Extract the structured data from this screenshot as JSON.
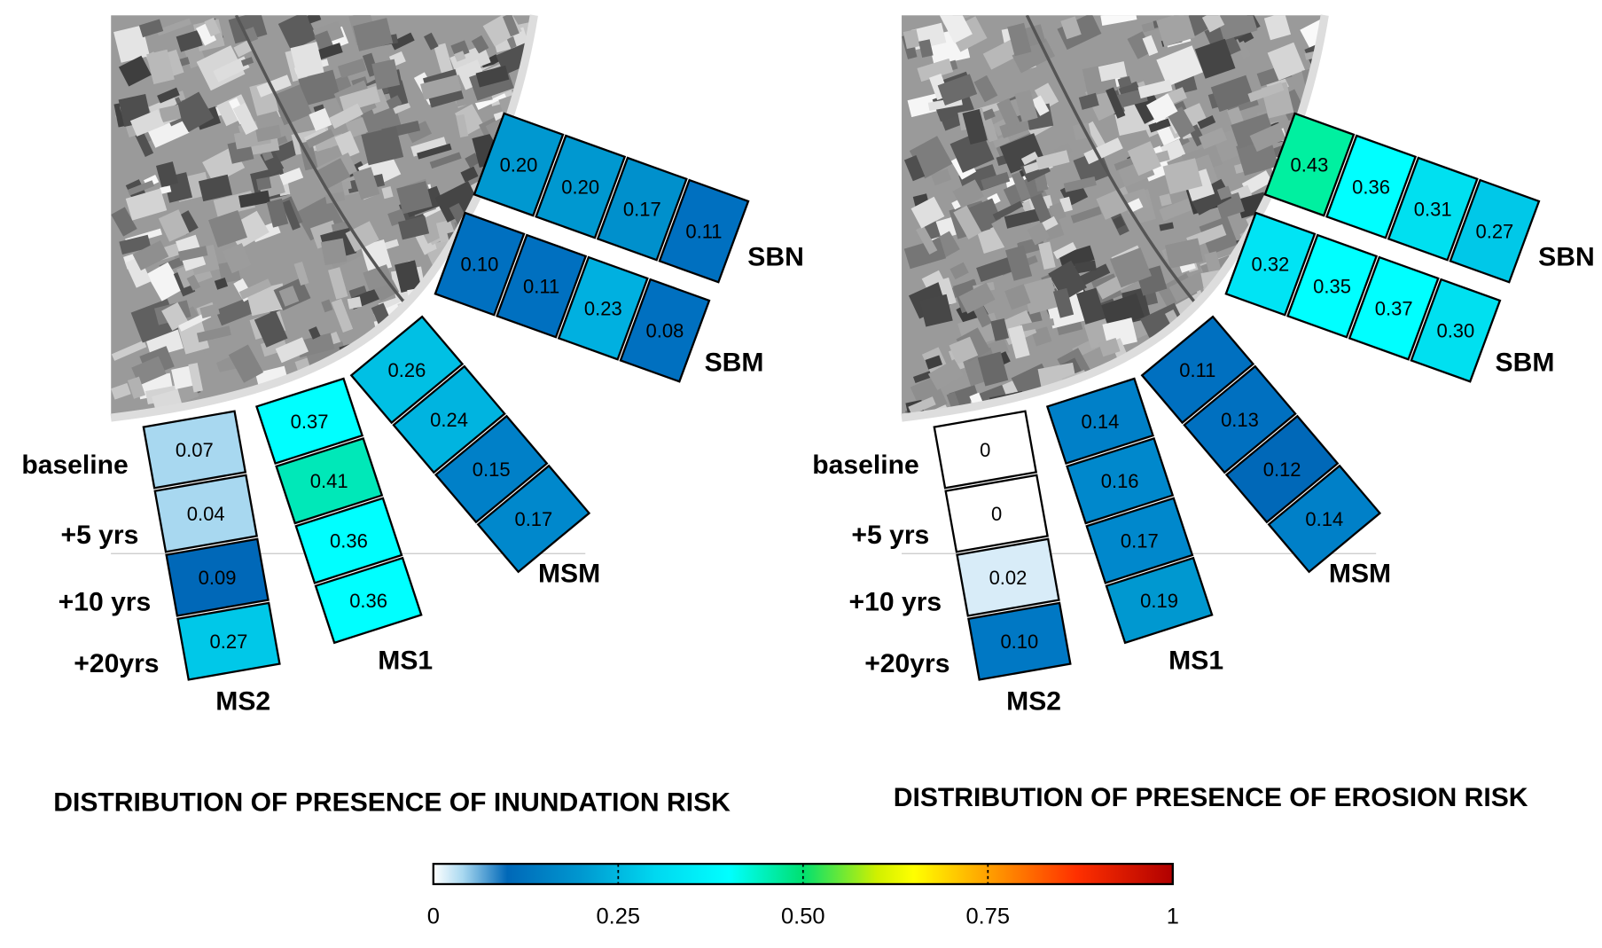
{
  "chart_data": [
    {
      "type": "heatmap",
      "title": "DISTRIBUTION OF PRESENCE OF INUNDATION RISK",
      "row_labels": [
        "baseline",
        "+5 yrs",
        "+10 yrs",
        "+20yrs"
      ],
      "sites": [
        {
          "name": "MS2",
          "values": [
            0.07,
            0.04,
            0.09,
            0.27
          ],
          "colors": [
            "#a8d8f0",
            "#a8d8f0",
            "#0068b8",
            "#00c8e8"
          ]
        },
        {
          "name": "MS1",
          "values": [
            0.37,
            0.41,
            0.36,
            0.36
          ],
          "colors": [
            "#00ffff",
            "#00e8b8",
            "#00ffff",
            "#00ffff"
          ]
        },
        {
          "name": "MSM",
          "values": [
            0.26,
            0.24,
            0.15,
            0.17
          ],
          "colors": [
            "#00c0e4",
            "#00b4e0",
            "#0080c8",
            "#0088cc"
          ]
        },
        {
          "name": "SBM",
          "values": [
            0.1,
            0.11,
            0.23,
            0.08
          ],
          "colors": [
            "#0070c0",
            "#0070c0",
            "#00b0e0",
            "#0070c0"
          ]
        },
        {
          "name": "SBN",
          "values": [
            0.2,
            0.2,
            0.17,
            0.11
          ],
          "colors": [
            "#0098d0",
            "#0098d0",
            "#0090cc",
            "#0070c0"
          ]
        }
      ]
    },
    {
      "type": "heatmap",
      "title": "DISTRIBUTION OF PRESENCE OF EROSION RISK",
      "row_labels": [
        "baseline",
        "+5 yrs",
        "+10 yrs",
        "+20yrs"
      ],
      "sites": [
        {
          "name": "MS2",
          "values": [
            0,
            0,
            0.02,
            0.1
          ],
          "value_labels": [
            "0",
            "0",
            "0.02",
            "0.10"
          ],
          "colors": [
            "#ffffff",
            "#ffffff",
            "#d8ecf8",
            "#0078c4"
          ]
        },
        {
          "name": "MS1",
          "values": [
            0.14,
            0.16,
            0.17,
            0.19
          ],
          "colors": [
            "#0080c8",
            "#0088cc",
            "#0088cc",
            "#0098d0"
          ]
        },
        {
          "name": "MSM",
          "values": [
            0.11,
            0.13,
            0.12,
            0.14
          ],
          "colors": [
            "#0070c0",
            "#0070c0",
            "#0068b8",
            "#0080c8"
          ]
        },
        {
          "name": "SBM",
          "values": [
            0.32,
            0.35,
            0.37,
            0.3
          ],
          "colors": [
            "#00e4f4",
            "#00ffff",
            "#00ffff",
            "#00e0f0"
          ]
        },
        {
          "name": "SBN",
          "values": [
            0.43,
            0.36,
            0.31,
            0.27
          ],
          "colors": [
            "#00f0a0",
            "#00ffff",
            "#00e0f0",
            "#00c8e8"
          ]
        }
      ]
    }
  ],
  "colorbar": {
    "range": [
      0,
      1
    ],
    "tick_labels": [
      "0",
      "0.25",
      "0.50",
      "0.75",
      "1"
    ],
    "ticks": [
      0,
      0.25,
      0.5,
      0.75,
      1
    ],
    "stops": [
      {
        "v": 0,
        "c": "#ffffff"
      },
      {
        "v": 0.04,
        "c": "#a8d8f0"
      },
      {
        "v": 0.1,
        "c": "#0068b8"
      },
      {
        "v": 0.2,
        "c": "#0098d0"
      },
      {
        "v": 0.3,
        "c": "#00d8f0"
      },
      {
        "v": 0.4,
        "c": "#00ffff"
      },
      {
        "v": 0.5,
        "c": "#00e070"
      },
      {
        "v": 0.6,
        "c": "#d0f000"
      },
      {
        "v": 0.65,
        "c": "#ffff00"
      },
      {
        "v": 0.75,
        "c": "#ffa000"
      },
      {
        "v": 0.87,
        "c": "#ff3000"
      },
      {
        "v": 1,
        "c": "#b00000"
      }
    ]
  }
}
